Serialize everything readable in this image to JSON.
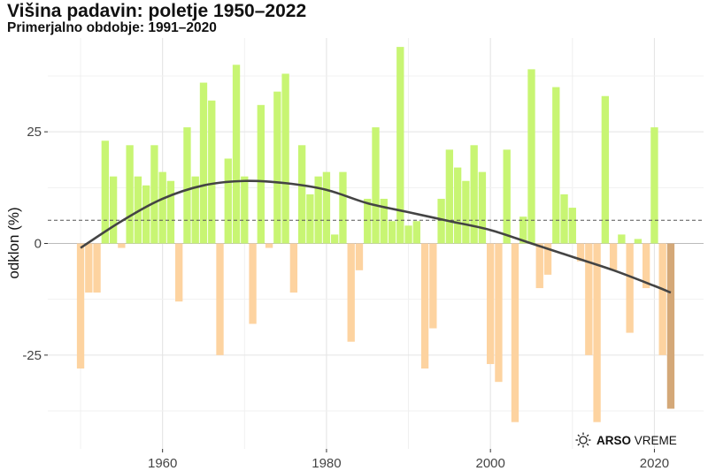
{
  "chart_data": {
    "type": "bar",
    "title": "Višina padavin: poletje 1950–2022",
    "subtitle": "Primerjalno obdobje: 1991–2020",
    "ylabel": "odklon (%)",
    "xlabel": "",
    "xlim": [
      1946,
      2026
    ],
    "ylim": [
      -46,
      46
    ],
    "xticks": [
      1960,
      1980,
      2000,
      2020
    ],
    "yticks": [
      -25,
      0,
      25
    ],
    "grid": true,
    "reference_line": 5.2,
    "colors": {
      "positive": "#c8f573",
      "negative": "#fdd3a0",
      "current": "#d4a878",
      "trend": "#444444",
      "reference": "#555555"
    },
    "x": [
      1950,
      1951,
      1952,
      1953,
      1954,
      1955,
      1956,
      1957,
      1958,
      1959,
      1960,
      1961,
      1962,
      1963,
      1964,
      1965,
      1966,
      1967,
      1968,
      1969,
      1970,
      1971,
      1972,
      1973,
      1974,
      1975,
      1976,
      1977,
      1978,
      1979,
      1980,
      1981,
      1982,
      1983,
      1984,
      1985,
      1986,
      1987,
      1988,
      1989,
      1990,
      1991,
      1992,
      1993,
      1994,
      1995,
      1996,
      1997,
      1998,
      1999,
      2000,
      2001,
      2002,
      2003,
      2004,
      2005,
      2006,
      2007,
      2008,
      2009,
      2010,
      2011,
      2012,
      2013,
      2014,
      2015,
      2016,
      2017,
      2018,
      2019,
      2020,
      2021,
      2022
    ],
    "values": [
      -28,
      -11,
      -11,
      23,
      15,
      -1,
      22,
      15,
      13,
      22,
      16,
      14,
      -13,
      26,
      15,
      36,
      32,
      -25,
      19,
      40,
      15,
      -18,
      31,
      -1,
      34,
      38,
      -11,
      22,
      11,
      15,
      16,
      2,
      16,
      -22,
      -6,
      10,
      26,
      10,
      5,
      44,
      4,
      5,
      -28,
      -19,
      10,
      21,
      17,
      14,
      22,
      16,
      -27,
      -31,
      21,
      -40,
      6,
      39,
      -10,
      -7,
      35,
      11,
      8,
      -4,
      -25,
      -40,
      33,
      -6,
      2,
      -20,
      1,
      -10,
      26,
      -25,
      -37
    ],
    "trend": {
      "x": [
        1950,
        1955,
        1960,
        1965,
        1970,
        1975,
        1980,
        1985,
        1990,
        1995,
        2000,
        2005,
        2010,
        2015,
        2020,
        2022
      ],
      "y": [
        -1,
        5,
        10,
        13,
        14,
        13.5,
        12,
        9,
        7,
        5,
        3,
        0,
        -3,
        -6,
        -9.5,
        -11
      ]
    }
  },
  "branding": {
    "name": "ARSO",
    "suffix": "VREME",
    "icon": "arso-sun-icon"
  }
}
